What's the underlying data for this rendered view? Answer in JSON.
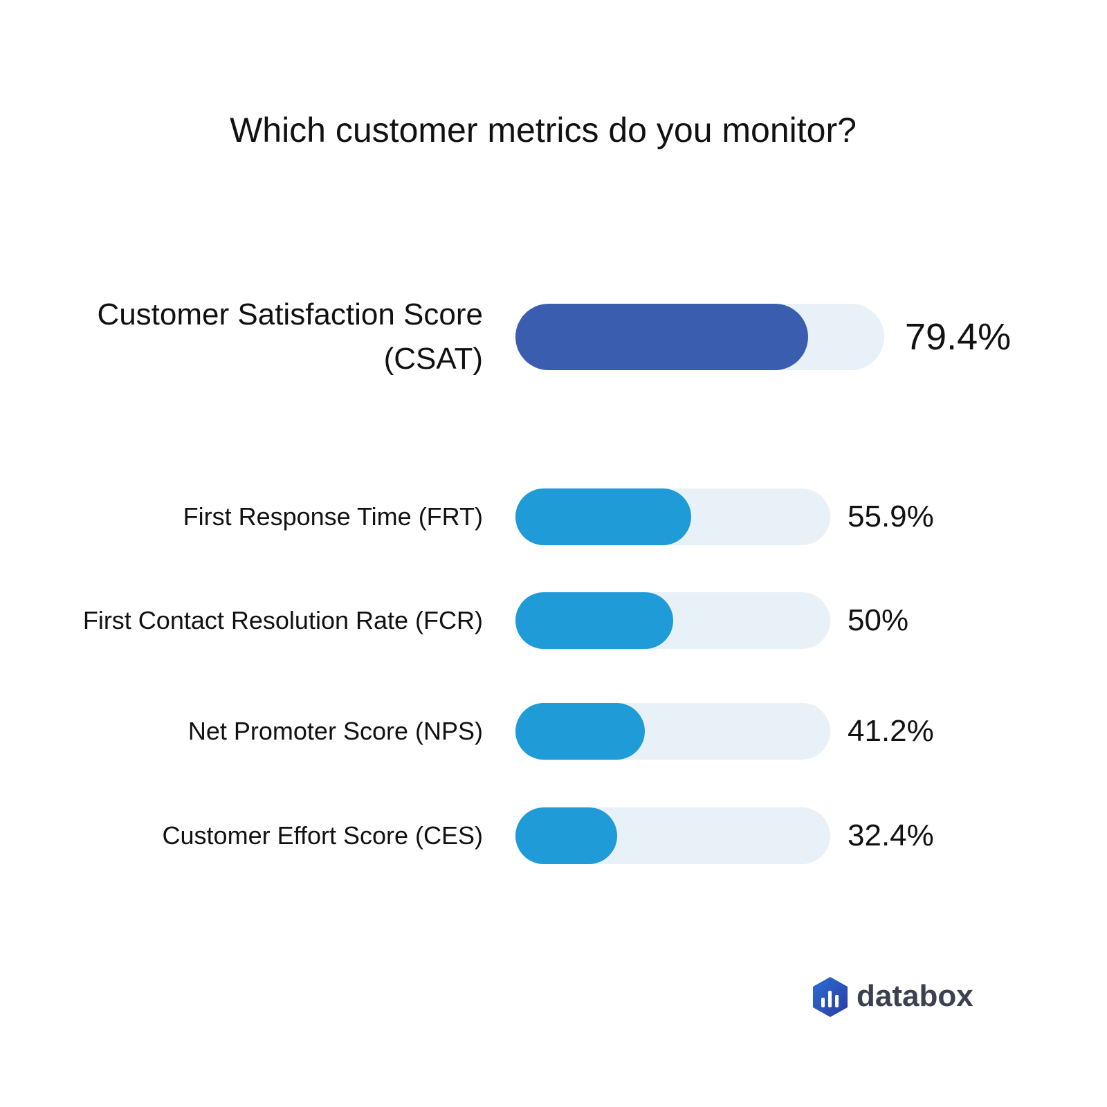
{
  "chart_data": {
    "type": "progress-bar",
    "title": "Which customer metrics do you monitor?",
    "categories": [
      "Customer Satisfaction Score (CSAT)",
      "First Response Time (FRT)",
      "First Contact Resolution Rate (FCR)",
      "Net Promoter Score (NPS)",
      "Customer Effort Score (CES)"
    ],
    "values": [
      79.4,
      55.9,
      50,
      41.2,
      32.4
    ],
    "value_labels": [
      "79.4%",
      "55.9%",
      "50%",
      "41.2%",
      "32.4%"
    ],
    "colors": [
      "#3b5db0",
      "#1f9bd7",
      "#1f9bd7",
      "#1f9bd7",
      "#1f9bd7"
    ],
    "track_color": "#e8f1f8",
    "xlim": [
      0,
      100
    ]
  },
  "brand": "databox"
}
